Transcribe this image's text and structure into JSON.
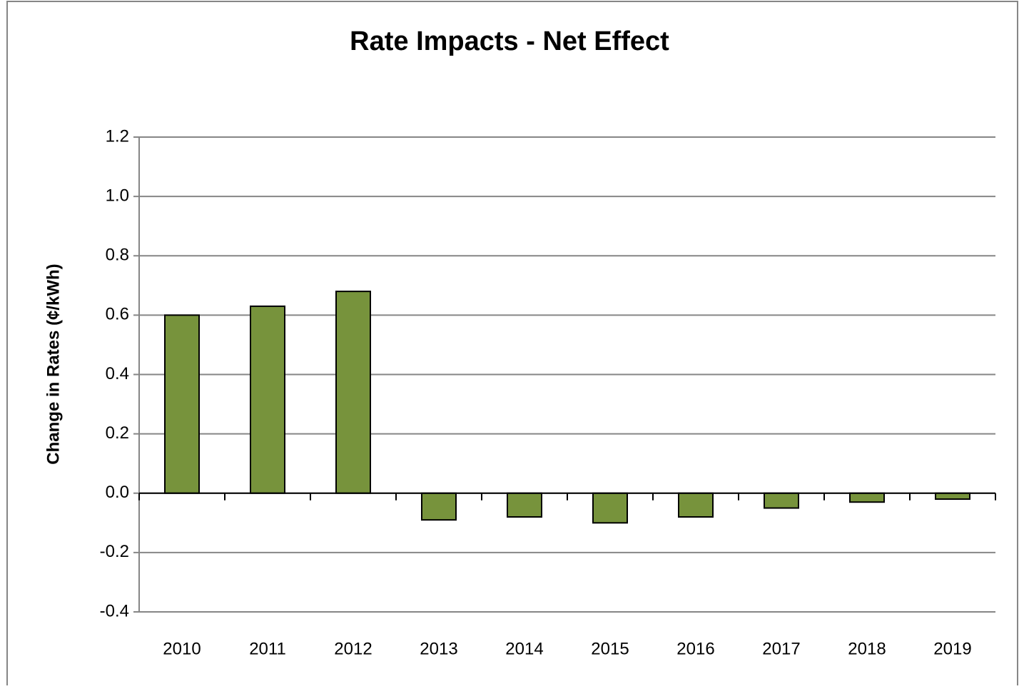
{
  "chart_data": {
    "type": "bar",
    "title": "Rate Impacts - Net Effect",
    "y_label": "Change in Rates (¢/kWh)",
    "categories": [
      "2010",
      "2011",
      "2012",
      "2013",
      "2014",
      "2015",
      "2016",
      "2017",
      "2018",
      "2019"
    ],
    "values": [
      0.6,
      0.63,
      0.68,
      -0.09,
      -0.08,
      -0.1,
      -0.08,
      -0.05,
      -0.03,
      -0.02
    ],
    "color": "#77933c",
    "ylim": [
      -0.4,
      1.2
    ],
    "yticks": [
      -0.4,
      -0.2,
      {
        "value": 0,
        "label": "0.0"
      },
      0.2,
      0.4,
      0.6,
      0.8,
      {
        "value": 1,
        "label": "1.0"
      },
      1.2
    ],
    "grid": true
  }
}
